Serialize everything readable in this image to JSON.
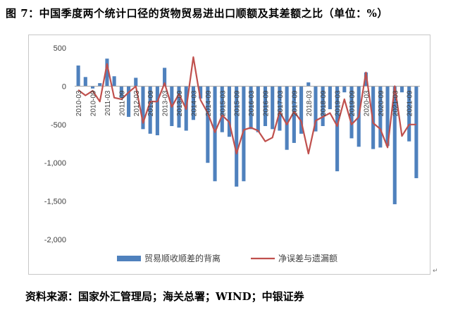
{
  "title": "图 7：中国季度两个统计口径的货物贸易进出口顺额及其差额之比（单位：%）",
  "source": "资料来源：国家外汇管理局；海关总署；WIND；中银证券",
  "colors": {
    "bar": "#4f81bd",
    "line": "#c0504d",
    "grid": "#d9d9d9",
    "text": "#404040"
  },
  "chart_data": {
    "type": "bar+line",
    "ylim": [
      -2000,
      500
    ],
    "yticks": [
      500,
      0,
      -500,
      -1000,
      -1500,
      -2000
    ],
    "ytick_labels": [
      "500",
      "0",
      "-500",
      "-1,000",
      "-1,500",
      "-2,000"
    ],
    "grid": false,
    "legend_position": "bottom",
    "xtick_labels": [
      "2010-03",
      "2010-09",
      "2011-03",
      "2011-09",
      "2012-03",
      "2012-09",
      "2013-03",
      "2013-09",
      "2014-03",
      "2014-09",
      "2015-03",
      "2015-09",
      "2016-03",
      "2016-09",
      "2017-03",
      "2017-09",
      "2018-03",
      "2018-09",
      "2019-03",
      "2019-09",
      "2020-03",
      "2020-09",
      "2021-03",
      "2021-09"
    ],
    "categories": [
      "2010-03",
      "2010-06",
      "2010-09",
      "2010-12",
      "2011-03",
      "2011-06",
      "2011-09",
      "2011-12",
      "2012-03",
      "2012-06",
      "2012-09",
      "2012-12",
      "2013-03",
      "2013-06",
      "2013-09",
      "2013-12",
      "2014-03",
      "2014-06",
      "2014-09",
      "2014-12",
      "2015-03",
      "2015-06",
      "2015-09",
      "2015-12",
      "2016-03",
      "2016-06",
      "2016-09",
      "2016-12",
      "2017-03",
      "2017-06",
      "2017-09",
      "2017-12",
      "2018-03",
      "2018-06",
      "2018-09",
      "2018-12",
      "2019-03",
      "2019-06",
      "2019-09",
      "2019-12",
      "2020-03",
      "2020-06",
      "2020-09",
      "2020-12",
      "2021-03",
      "2021-06",
      "2021-09",
      "2021-12"
    ],
    "series": [
      {
        "name": "贸易顺收顺差的背离",
        "type": "bar",
        "values": [
          270,
          120,
          -30,
          40,
          360,
          130,
          -150,
          -400,
          110,
          -560,
          -620,
          -640,
          240,
          -520,
          -540,
          -580,
          -440,
          -160,
          -1000,
          -1240,
          -600,
          -660,
          -1310,
          -1240,
          -560,
          -600,
          -520,
          -560,
          -580,
          -830,
          -740,
          -620,
          50,
          -590,
          -520,
          -300,
          -1110,
          -80,
          -680,
          -790,
          180,
          -820,
          -800,
          -780,
          -1540,
          -80,
          -720,
          -1200
        ]
      },
      {
        "name": "净误差与遗漏额",
        "type": "line",
        "values": [
          -50,
          -120,
          -60,
          -200,
          290,
          -150,
          -170,
          -80,
          0,
          -480,
          -200,
          -200,
          40,
          -270,
          -100,
          -300,
          380,
          -180,
          -350,
          -600,
          -380,
          -470,
          -880,
          -570,
          -540,
          -580,
          -720,
          -670,
          -330,
          -500,
          -330,
          -460,
          -880,
          -450,
          -400,
          -350,
          -520,
          -170,
          -500,
          -400,
          180,
          -480,
          -560,
          -800,
          0,
          -650,
          -500,
          -500
        ]
      }
    ]
  }
}
